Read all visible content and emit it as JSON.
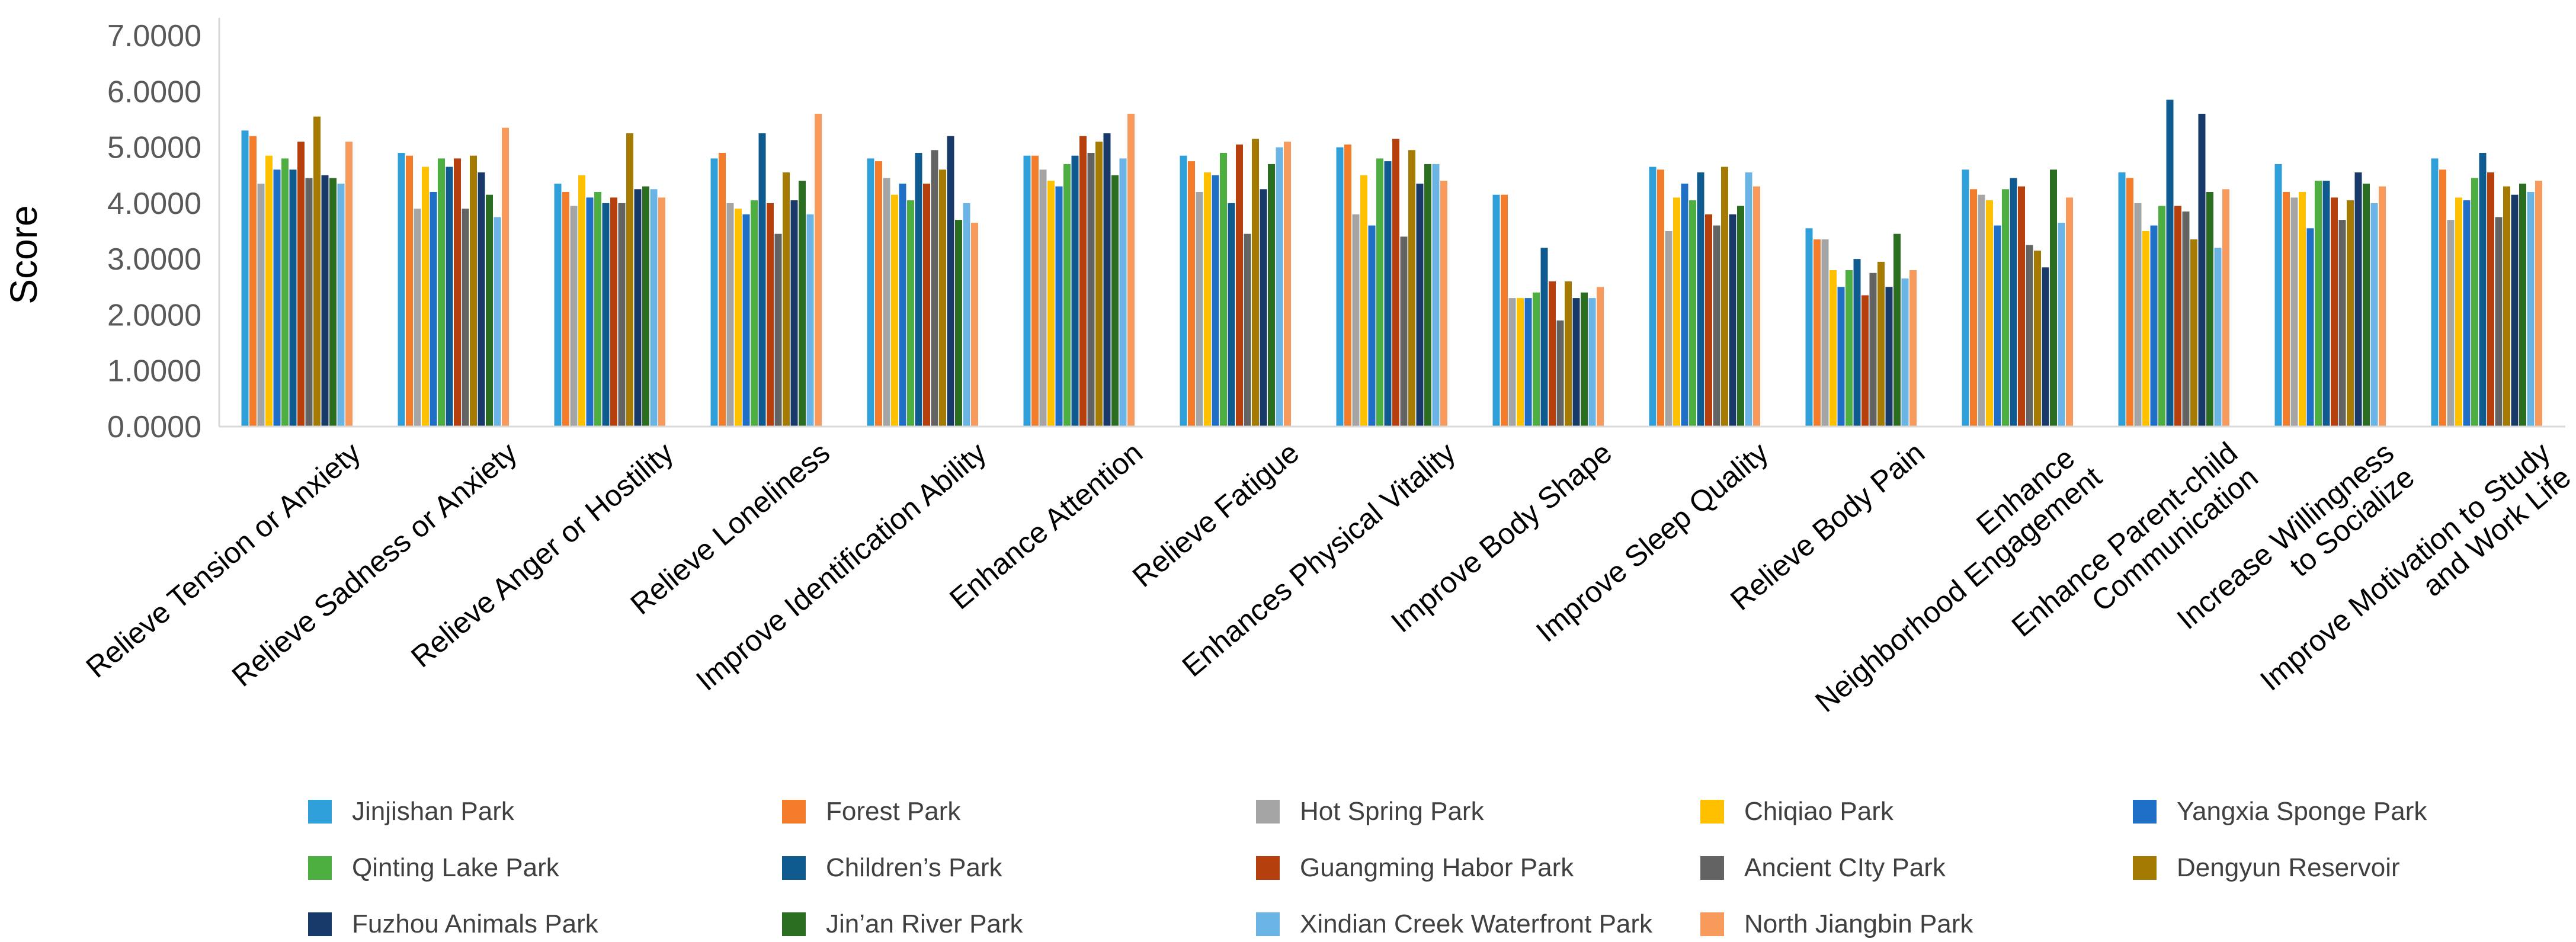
{
  "chart_data": {
    "type": "bar",
    "title": "",
    "xlabel": "",
    "ylabel": "Score",
    "ylim": [
      0,
      7
    ],
    "yticks": [
      "0.0000",
      "1.0000",
      "2.0000",
      "3.0000",
      "4.0000",
      "5.0000",
      "6.0000",
      "7.0000"
    ],
    "grid": false,
    "legend_position": "bottom",
    "categories": [
      "Relieve Tension or Anxiety",
      "Relieve Sadness or Anxiety",
      "Relieve Anger or Hostility",
      "Relieve Loneliness",
      "Improve Identification Ability",
      "Enhance Attention",
      "Relieve Fatigue",
      "Enhances Physical Vitality",
      "Improve Body Shape",
      "Improve Sleep Quality",
      "Relieve Body Pain",
      "Enhance  Neighborhood Engagement",
      "Enhance Parent-child Communication",
      "Increase Willingness to Socialize",
      "Improve Motivation to Study and Work Life"
    ],
    "series": [
      {
        "name": "Jinjishan Park",
        "color": "#2E9FD8",
        "values": [
          5.3,
          4.9,
          4.35,
          4.8,
          4.8,
          4.85,
          4.85,
          5.0,
          4.15,
          4.65,
          3.55,
          4.6,
          4.55,
          4.7,
          4.8
        ]
      },
      {
        "name": "Forest Park",
        "color": "#F47B2A",
        "values": [
          5.2,
          4.85,
          4.2,
          4.9,
          4.75,
          4.85,
          4.75,
          5.05,
          4.15,
          4.6,
          3.35,
          4.25,
          4.45,
          4.2,
          4.6
        ]
      },
      {
        "name": "Hot Spring Park",
        "color": "#A5A5A5",
        "values": [
          4.35,
          3.9,
          3.95,
          4.0,
          4.45,
          4.6,
          4.2,
          3.8,
          2.3,
          3.5,
          3.35,
          4.15,
          4.0,
          4.1,
          3.7
        ]
      },
      {
        "name": "Chiqiao Park",
        "color": "#FFC000",
        "values": [
          4.85,
          4.65,
          4.5,
          3.9,
          4.15,
          4.4,
          4.55,
          4.5,
          2.3,
          4.1,
          2.8,
          4.05,
          3.5,
          4.2,
          4.1
        ]
      },
      {
        "name": "Yangxia Sponge Park",
        "color": "#1F6FC6",
        "values": [
          4.6,
          4.2,
          4.1,
          3.8,
          4.35,
          4.3,
          4.5,
          3.6,
          2.3,
          4.35,
          2.5,
          3.6,
          3.6,
          3.55,
          4.05
        ]
      },
      {
        "name": "Qinting Lake Park",
        "color": "#4CAF3F",
        "values": [
          4.8,
          4.8,
          4.2,
          4.05,
          4.05,
          4.7,
          4.9,
          4.8,
          2.4,
          4.05,
          2.8,
          4.25,
          3.95,
          4.4,
          4.45
        ]
      },
      {
        "name": "Children’s Park",
        "color": "#0F5B8F",
        "values": [
          4.6,
          4.65,
          4.0,
          5.25,
          4.9,
          4.85,
          4.0,
          4.75,
          3.2,
          4.55,
          3.0,
          4.45,
          5.85,
          4.4,
          4.9
        ]
      },
      {
        "name": "Guangming Habor Park",
        "color": "#B5400D",
        "values": [
          5.1,
          4.8,
          4.1,
          4.0,
          4.35,
          5.2,
          5.05,
          5.15,
          2.6,
          3.8,
          2.35,
          4.3,
          3.95,
          4.1,
          4.55
        ]
      },
      {
        "name": "Ancient CIty Park",
        "color": "#636363",
        "values": [
          4.45,
          3.9,
          4.0,
          3.45,
          4.95,
          4.9,
          3.45,
          3.4,
          1.9,
          3.6,
          2.75,
          3.25,
          3.85,
          3.7,
          3.75
        ]
      },
      {
        "name": "Dengyun Reservoir",
        "color": "#A47A00",
        "values": [
          5.55,
          4.85,
          5.25,
          4.55,
          4.6,
          5.1,
          5.15,
          4.95,
          2.6,
          4.65,
          2.95,
          3.15,
          3.35,
          4.05,
          4.3
        ]
      },
      {
        "name": "Fuzhou Animals Park",
        "color": "#173A6B",
        "values": [
          4.5,
          4.55,
          4.25,
          4.05,
          5.2,
          5.25,
          4.25,
          4.35,
          2.3,
          3.8,
          2.5,
          2.85,
          5.6,
          4.55,
          4.15
        ]
      },
      {
        "name": "Jin’an River Park",
        "color": "#2B6E22",
        "values": [
          4.45,
          4.15,
          4.3,
          4.4,
          3.7,
          4.5,
          4.7,
          4.7,
          2.4,
          3.95,
          3.45,
          4.6,
          4.2,
          4.35,
          4.35
        ]
      },
      {
        "name": "Xindian Creek Waterfront Park",
        "color": "#6AB4E6",
        "values": [
          4.35,
          3.75,
          4.25,
          3.8,
          4.0,
          4.8,
          5.0,
          4.7,
          2.3,
          4.55,
          2.65,
          3.65,
          3.2,
          4.0,
          4.2
        ]
      },
      {
        "name": "North Jiangbin Park",
        "color": "#F89A5C",
        "values": [
          5.1,
          5.35,
          4.1,
          5.6,
          3.65,
          5.6,
          5.1,
          4.4,
          2.5,
          4.3,
          2.8,
          4.1,
          4.25,
          4.3,
          4.4
        ]
      }
    ]
  }
}
